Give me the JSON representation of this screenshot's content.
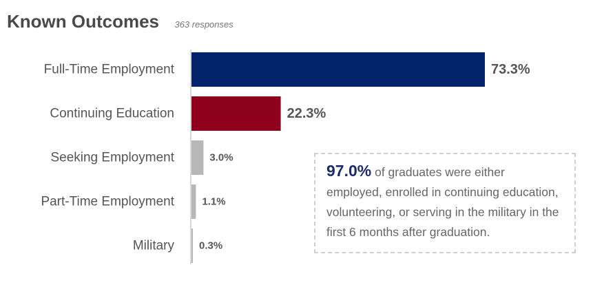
{
  "header": {
    "title": "Known Outcomes",
    "subtitle": "363 responses"
  },
  "chart_data": {
    "type": "bar",
    "orientation": "horizontal",
    "categories": [
      "Full-Time Employment",
      "Continuing Education",
      "Seeking Employment",
      "Part-Time Employment",
      "Military"
    ],
    "values": [
      73.3,
      22.3,
      3.0,
      1.1,
      0.3
    ],
    "value_labels": [
      "73.3%",
      "22.3%",
      "3.0%",
      "1.1%",
      "0.3%"
    ],
    "colors": [
      "#03246b",
      "#8f001c",
      "#b7b7b7",
      "#b7b7b7",
      "#b7b7b7"
    ],
    "xlim": [
      0,
      73.3
    ],
    "grid": false,
    "legend": "none"
  },
  "callout": {
    "highlight": "97.0%",
    "text": " of graduates were either employed, enrolled in continuing education, volunteering, or serving in the military in the first 6 months after graduation."
  }
}
